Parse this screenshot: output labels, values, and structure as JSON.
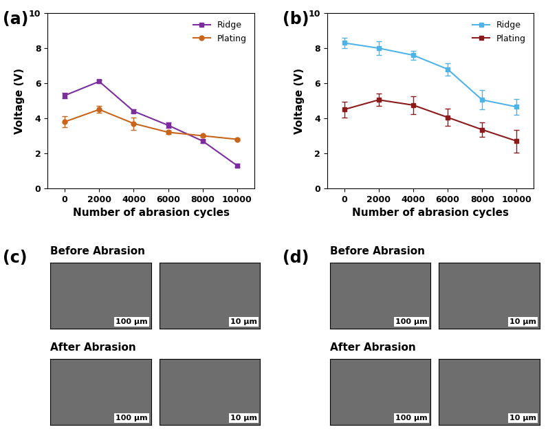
{
  "chart_data": [
    {
      "type": "line",
      "panel_label": "(a)",
      "x_label": "Number of abrasion cycles",
      "y_label": "Voltage (V)",
      "x": [
        0,
        2000,
        4000,
        6000,
        8000,
        10000
      ],
      "xlim": [
        -1000,
        11000
      ],
      "xticks": [
        0,
        2000,
        4000,
        6000,
        8000,
        10000
      ],
      "ylim": [
        0,
        10
      ],
      "yticks": [
        0,
        2,
        4,
        6,
        8,
        10
      ],
      "legend": "upper right",
      "series": [
        {
          "name": "Ridge",
          "color": "#7b2d9e",
          "marker": "square",
          "values": [
            5.3,
            6.1,
            4.4,
            3.6,
            2.7,
            1.3
          ],
          "errors": [
            0.15,
            0.1,
            0.1,
            0.15,
            0.1,
            0.1
          ]
        },
        {
          "name": "Plating",
          "color": "#c8651b",
          "marker": "circle",
          "values": [
            3.8,
            4.5,
            3.7,
            3.2,
            3.0,
            2.8
          ],
          "errors": [
            0.3,
            0.2,
            0.35,
            0.1,
            0.05,
            0.05
          ]
        }
      ]
    },
    {
      "type": "line",
      "panel_label": "(b)",
      "x_label": "Number of abrasion cycles",
      "y_label": "Voltage (V)",
      "x": [
        0,
        2000,
        4000,
        6000,
        8000,
        10000
      ],
      "xlim": [
        -1000,
        11000
      ],
      "xticks": [
        0,
        2000,
        4000,
        6000,
        8000,
        10000
      ],
      "ylim": [
        0,
        10
      ],
      "yticks": [
        0,
        2,
        4,
        6,
        8,
        10
      ],
      "legend": "upper right",
      "series": [
        {
          "name": "Ridge",
          "color": "#4fb3e8",
          "marker": "square",
          "values": [
            8.3,
            8.0,
            7.6,
            6.8,
            5.05,
            4.65
          ],
          "errors": [
            0.3,
            0.4,
            0.25,
            0.35,
            0.55,
            0.45
          ]
        },
        {
          "name": "Plating",
          "color": "#8b1a1a",
          "marker": "square",
          "values": [
            4.5,
            5.05,
            4.75,
            4.05,
            3.35,
            2.7
          ],
          "errors": [
            0.45,
            0.35,
            0.5,
            0.5,
            0.4,
            0.65
          ]
        }
      ]
    }
  ],
  "images": [
    {
      "panel_label": "(c)",
      "rows": [
        {
          "title": "Before Abrasion",
          "scale_bars": [
            "100 µm",
            "10 µm"
          ]
        },
        {
          "title": "After Abrasion",
          "scale_bars": [
            "100 µm",
            "10 µm"
          ]
        }
      ]
    },
    {
      "panel_label": "(d)",
      "rows": [
        {
          "title": "Before Abrasion",
          "scale_bars": [
            "100 µm",
            "10 µm"
          ]
        },
        {
          "title": "After Abrasion",
          "scale_bars": [
            "100 µm",
            "10 µm"
          ]
        }
      ]
    }
  ]
}
